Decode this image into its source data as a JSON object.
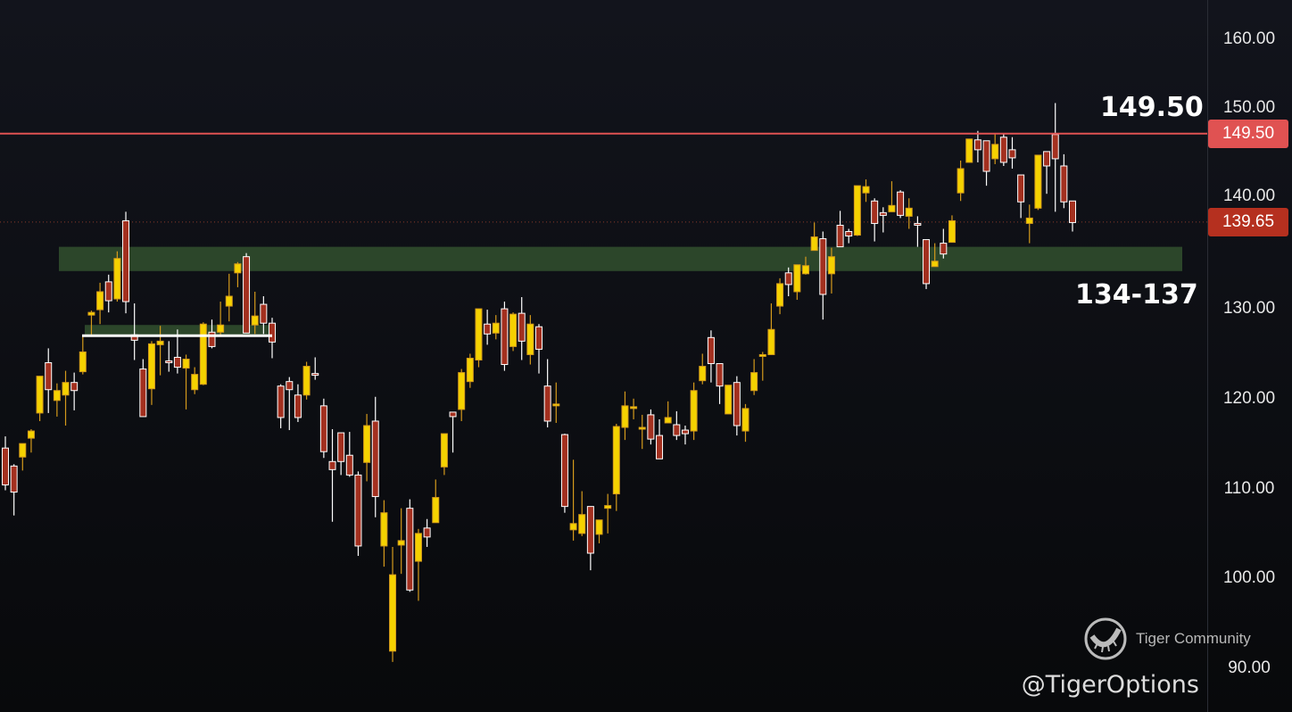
{
  "chart_data": {
    "type": "candlestick",
    "ylim": [
      88,
      164
    ],
    "y_ticks": [
      "160.00",
      "150.00",
      "140.00",
      "130.00",
      "120.00",
      "110.00",
      "100.00",
      "90.00"
    ],
    "y_tick_values": [
      160,
      150,
      140,
      130,
      120,
      110,
      100,
      90
    ],
    "resistance": {
      "value": 149.5,
      "label": "149.50",
      "annotation": "149.50",
      "color": "#e05252"
    },
    "last_price": {
      "value": 139.65,
      "label": "139.65",
      "color": "#b5301f"
    },
    "support_zone": {
      "low": 134.2,
      "high": 136.9,
      "annotation": "134-137",
      "color": "#2e4a2b"
    },
    "small_zone": {
      "low": 127.0,
      "high": 128.2,
      "color": "#2e4a2b"
    },
    "colors": {
      "up": "#f5d200",
      "up_wick": "#d49a1c",
      "down": "#a3301f",
      "down_border": "#ffffff"
    },
    "candles_ohlc": [
      [
        114.5,
        115.8,
        109.8,
        110.4
      ],
      [
        112.5,
        112.7,
        107.0,
        109.6
      ],
      [
        113.5,
        115.0,
        112.0,
        115.0
      ],
      [
        115.6,
        116.6,
        114.0,
        116.4
      ],
      [
        118.4,
        122.5,
        117.5,
        122.5
      ],
      [
        124.0,
        125.6,
        118.4,
        121.0
      ],
      [
        119.8,
        121.7,
        118.0,
        120.9
      ],
      [
        120.4,
        123.1,
        117.0,
        121.8
      ],
      [
        121.8,
        122.9,
        118.7,
        120.9
      ],
      [
        123.0,
        126.9,
        122.7,
        125.2
      ],
      [
        129.3,
        129.8,
        127.1,
        129.6
      ],
      [
        129.9,
        132.9,
        128.3,
        131.9
      ],
      [
        133.0,
        133.8,
        129.6,
        130.9
      ],
      [
        131.1,
        136.4,
        130.8,
        135.6
      ],
      [
        139.8,
        140.8,
        129.5,
        130.8
      ],
      [
        127.1,
        130.6,
        124.3,
        126.5
      ],
      [
        123.3,
        124.4,
        118.0,
        118.0
      ],
      [
        121.1,
        126.4,
        119.3,
        126.1
      ],
      [
        126.0,
        128.1,
        122.6,
        126.4
      ],
      [
        124.2,
        126.4,
        123.0,
        124.0
      ],
      [
        124.6,
        127.7,
        122.8,
        123.5
      ],
      [
        123.4,
        124.9,
        118.8,
        124.4
      ],
      [
        121.0,
        123.5,
        120.5,
        122.7
      ],
      [
        121.6,
        128.5,
        121.5,
        128.3
      ],
      [
        127.4,
        128.8,
        125.6,
        125.8
      ],
      [
        127.4,
        130.8,
        127.1,
        128.2
      ],
      [
        130.3,
        133.9,
        128.6,
        131.4
      ],
      [
        134.0,
        135.2,
        132.4,
        135.0
      ],
      [
        135.8,
        136.2,
        127.3,
        127.3
      ],
      [
        128.2,
        131.9,
        127.2,
        129.2
      ],
      [
        130.5,
        131.4,
        127.2,
        128.4
      ],
      [
        128.4,
        129.0,
        124.5,
        126.3
      ],
      [
        121.4,
        121.6,
        116.7,
        117.9
      ],
      [
        121.9,
        122.4,
        116.5,
        121.0
      ],
      [
        120.4,
        121.6,
        117.4,
        117.9
      ],
      [
        120.4,
        124.1,
        119.9,
        123.6
      ],
      [
        122.8,
        124.6,
        122.1,
        122.6
      ],
      [
        119.2,
        120.0,
        113.4,
        114.1
      ],
      [
        113.0,
        116.6,
        106.3,
        112.1
      ],
      [
        116.2,
        116.2,
        111.5,
        113.0
      ],
      [
        113.7,
        116.3,
        111.3,
        111.5
      ],
      [
        111.5,
        111.9,
        102.5,
        103.6
      ],
      [
        112.9,
        118.3,
        110.8,
        117.0
      ],
      [
        117.5,
        120.2,
        106.8,
        109.1
      ],
      [
        103.6,
        108.7,
        101.3,
        107.3
      ],
      [
        91.9,
        103.5,
        90.7,
        100.4
      ],
      [
        103.7,
        107.8,
        100.5,
        104.2
      ],
      [
        107.8,
        108.8,
        98.5,
        98.7
      ],
      [
        101.9,
        105.5,
        97.5,
        105.0
      ],
      [
        105.6,
        106.6,
        103.5,
        104.6
      ],
      [
        106.2,
        111.0,
        106.2,
        109.0
      ],
      [
        112.4,
        116.1,
        111.5,
        116.1
      ],
      [
        118.5,
        118.5,
        114.0,
        118.0
      ],
      [
        118.8,
        123.3,
        117.5,
        122.9
      ],
      [
        121.9,
        125.0,
        121.2,
        124.5
      ],
      [
        124.3,
        130.0,
        123.5,
        130.0
      ],
      [
        128.3,
        129.9,
        126.0,
        127.2
      ],
      [
        127.3,
        129.3,
        126.6,
        128.4
      ],
      [
        130.0,
        130.8,
        123.1,
        123.8
      ],
      [
        125.8,
        129.6,
        125.3,
        129.4
      ],
      [
        129.5,
        131.3,
        124.3,
        126.4
      ],
      [
        124.9,
        129.3,
        123.8,
        128.3
      ],
      [
        128.0,
        128.3,
        122.8,
        125.5
      ],
      [
        121.4,
        124.4,
        116.8,
        117.5
      ],
      [
        119.4,
        121.8,
        117.3,
        119.4
      ],
      [
        116.0,
        116.1,
        107.3,
        108.0
      ],
      [
        105.4,
        113.2,
        104.2,
        106.1
      ],
      [
        105.0,
        109.7,
        104.7,
        107.1
      ],
      [
        108.0,
        108.0,
        100.9,
        102.8
      ],
      [
        104.9,
        106.5,
        103.9,
        106.5
      ],
      [
        107.8,
        109.4,
        105.0,
        108.1
      ],
      [
        109.4,
        117.2,
        107.5,
        116.9
      ],
      [
        116.8,
        120.8,
        115.4,
        119.2
      ],
      [
        119.0,
        120.0,
        117.7,
        119.1
      ],
      [
        116.8,
        118.2,
        114.4,
        116.8
      ],
      [
        118.2,
        118.8,
        114.9,
        115.5
      ],
      [
        115.9,
        117.7,
        113.3,
        113.3
      ],
      [
        117.3,
        119.7,
        117.3,
        117.9
      ],
      [
        117.1,
        118.6,
        115.4,
        115.9
      ],
      [
        116.5,
        117.0,
        114.9,
        116.1
      ],
      [
        116.4,
        121.8,
        115.4,
        120.9
      ],
      [
        122.0,
        125.0,
        121.6,
        123.6
      ],
      [
        126.8,
        127.6,
        121.8,
        123.9
      ],
      [
        123.9,
        123.9,
        119.4,
        121.4
      ],
      [
        118.3,
        121.5,
        118.3,
        121.5
      ],
      [
        121.8,
        122.5,
        115.9,
        117.0
      ],
      [
        116.4,
        119.4,
        115.2,
        118.9
      ],
      [
        120.9,
        124.4,
        120.4,
        122.9
      ],
      [
        124.9,
        125.2,
        122.0,
        124.9
      ],
      [
        124.9,
        130.6,
        124.9,
        127.7
      ],
      [
        130.3,
        133.4,
        129.4,
        132.8
      ],
      [
        134.0,
        134.6,
        131.4,
        132.7
      ],
      [
        131.9,
        134.9,
        131.0,
        134.9
      ],
      [
        133.9,
        135.8,
        133.8,
        134.8
      ],
      [
        136.5,
        139.6,
        136.5,
        138.0
      ],
      [
        137.8,
        138.6,
        128.8,
        131.6
      ],
      [
        133.9,
        136.8,
        131.7,
        135.8
      ],
      [
        139.3,
        140.9,
        136.9,
        136.9
      ],
      [
        138.6,
        138.9,
        137.3,
        138.1
      ],
      [
        138.2,
        143.7,
        138.1,
        143.7
      ],
      [
        142.9,
        144.4,
        141.9,
        143.6
      ],
      [
        142.0,
        142.3,
        137.5,
        139.5
      ],
      [
        140.7,
        141.3,
        138.5,
        140.4
      ],
      [
        140.8,
        144.2,
        140.8,
        141.5
      ],
      [
        143.0,
        143.2,
        140.1,
        140.4
      ],
      [
        140.3,
        142.3,
        138.9,
        141.2
      ],
      [
        139.5,
        140.3,
        136.9,
        139.4
      ],
      [
        137.7,
        137.7,
        132.2,
        132.8
      ],
      [
        134.7,
        137.3,
        134.7,
        135.3
      ],
      [
        137.3,
        138.9,
        135.6,
        136.1
      ],
      [
        137.4,
        140.4,
        137.4,
        139.8
      ],
      [
        142.9,
        146.5,
        142.0,
        145.6
      ],
      [
        146.3,
        148.9,
        146.3,
        148.9
      ],
      [
        148.8,
        149.8,
        146.3,
        147.7
      ],
      [
        148.7,
        148.7,
        143.7,
        145.3
      ],
      [
        146.7,
        149.5,
        146.1,
        148.3
      ],
      [
        149.1,
        149.5,
        145.9,
        146.3
      ],
      [
        147.7,
        149.1,
        145.6,
        146.8
      ],
      [
        144.9,
        144.9,
        140.1,
        141.9
      ],
      [
        139.5,
        141.6,
        137.3,
        140.1
      ],
      [
        141.2,
        147.1,
        141.0,
        147.1
      ],
      [
        147.5,
        147.5,
        142.8,
        145.9
      ],
      [
        149.4,
        152.9,
        140.8,
        146.7
      ],
      [
        145.9,
        147.2,
        141.2,
        141.9
      ],
      [
        142.0,
        142.0,
        138.6,
        139.6
      ]
    ]
  },
  "watermark": {
    "brand": "Tiger Community",
    "handle": "@TigerOptions",
    "logo_icon": "tiger-smile-circle-icon"
  }
}
